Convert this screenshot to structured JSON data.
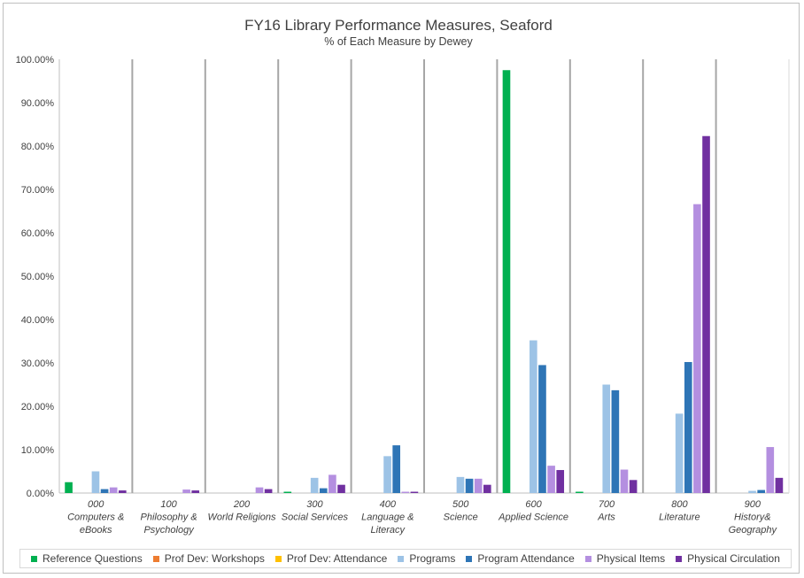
{
  "chart_data": {
    "type": "bar",
    "title": "FY16 Library Performance Measures, Seaford",
    "subtitle": "% of Each Measure by Dewey",
    "xlabel": "",
    "ylabel": "",
    "ylim": [
      0,
      100
    ],
    "y_ticks": [
      "0.00%",
      "10.00%",
      "20.00%",
      "30.00%",
      "40.00%",
      "50.00%",
      "60.00%",
      "70.00%",
      "80.00%",
      "90.00%",
      "100.00%"
    ],
    "categories": [
      [
        "000",
        "Computers &",
        "eBooks"
      ],
      [
        "100",
        "Philosophy &",
        "Psychology"
      ],
      [
        "200",
        "World Religions"
      ],
      [
        "300",
        "Social Services"
      ],
      [
        "400",
        "Language &",
        "Literacy"
      ],
      [
        "500",
        "Science"
      ],
      [
        "600",
        "Applied Science"
      ],
      [
        "700",
        "Arts"
      ],
      [
        "800",
        "Literature"
      ],
      [
        "900",
        "History&",
        "Geography"
      ]
    ],
    "series": [
      {
        "name": "Reference Questions",
        "color": "#00b050",
        "values": [
          2.5,
          0,
          0,
          0.3,
          0,
          0,
          97.5,
          0.3,
          0,
          0
        ]
      },
      {
        "name": "Prof Dev: Workshops",
        "color": "#ed7d31",
        "values": [
          0,
          0,
          0,
          0,
          0,
          0,
          0,
          0,
          0,
          0
        ]
      },
      {
        "name": "Prof Dev: Attendance",
        "color": "#ffc000",
        "values": [
          0,
          0,
          0,
          0,
          0,
          0,
          0,
          0,
          0,
          0
        ]
      },
      {
        "name": "Programs",
        "color": "#9dc3e6",
        "values": [
          5.0,
          0,
          0,
          3.5,
          8.5,
          3.7,
          35.2,
          25.0,
          18.3,
          0.5
        ]
      },
      {
        "name": "Program Attendance",
        "color": "#2e75b6",
        "values": [
          0.9,
          0,
          0,
          1.1,
          11.0,
          3.3,
          29.5,
          23.7,
          30.2,
          0.7
        ]
      },
      {
        "name": "Physical Items",
        "color": "#b48fe0",
        "values": [
          1.3,
          0.8,
          1.3,
          4.2,
          0.3,
          3.3,
          6.3,
          5.4,
          66.6,
          10.6
        ]
      },
      {
        "name": "Physical Circulation",
        "color": "#7030a0",
        "values": [
          0.6,
          0.6,
          0.9,
          1.9,
          0.3,
          1.9,
          5.3,
          3.0,
          82.3,
          3.5
        ]
      }
    ],
    "legend_position": "bottom"
  }
}
